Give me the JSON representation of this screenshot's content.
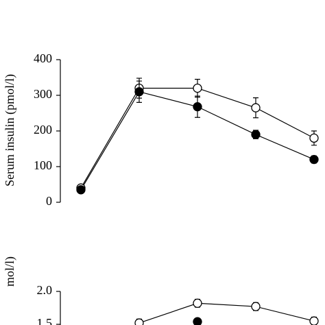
{
  "chart_data": [
    {
      "type": "line",
      "ylabel": "Serum insulin (pmol/l)",
      "categories": [
        null,
        null,
        null,
        null,
        null
      ],
      "ylim": [
        0,
        400
      ],
      "yticks": [
        0,
        100,
        200,
        300,
        400
      ],
      "series": [
        {
          "color": "#ffffff",
          "values": [
            40,
            320,
            320,
            265,
            180
          ],
          "errors": [
            0,
            28,
            25,
            28,
            20
          ]
        },
        {
          "color": "#000000",
          "values": [
            35,
            310,
            268,
            190,
            120
          ],
          "errors": [
            0,
            30,
            30,
            12,
            10
          ]
        }
      ]
    },
    {
      "type": "line",
      "ylabel": "mol/l)",
      "categories": [
        null,
        null,
        null,
        null,
        null
      ],
      "ylim": [
        1.5,
        2.0
      ],
      "yticks": [
        {
          "value": 2,
          "label": "2.0"
        },
        {
          "value": 1.5,
          "label": "1.5"
        }
      ],
      "series": [
        {
          "color": "#ffffff",
          "values": [
            null,
            1.52,
            1.82,
            1.77,
            1.55
          ],
          "errors": [
            null,
            0.06,
            0.06,
            0.06,
            0.06
          ]
        },
        {
          "color": "#000000",
          "values": [
            null,
            null,
            1.54,
            null,
            null
          ],
          "errors": [
            null,
            null,
            0.04,
            null,
            null
          ]
        }
      ]
    }
  ]
}
